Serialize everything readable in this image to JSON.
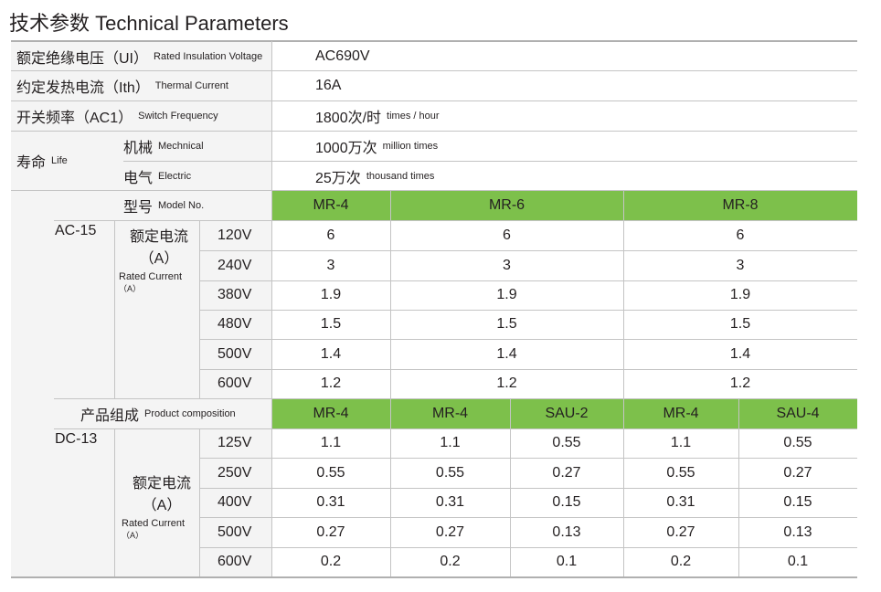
{
  "title": "技术参数 Technical Parameters",
  "params": [
    {
      "cn": "额定绝缘电压（UI）",
      "en": "Rated Insulation Voltage",
      "value": "AC690V",
      "unit": ""
    },
    {
      "cn": "约定发热电流（Ith）",
      "en": "Thermal Current",
      "value": "16A",
      "unit": ""
    },
    {
      "cn": "开关频率（AC1）",
      "en": "Switch Frequency",
      "value": "1800次/时",
      "unit": "times / hour"
    }
  ],
  "life": {
    "cn": "寿命",
    "en": "Life",
    "rows": [
      {
        "cn": "机械",
        "en": "Mechnical",
        "value": "1000万次",
        "unit": "million times"
      },
      {
        "cn": "电气",
        "en": "Electric",
        "value": "25万次",
        "unit": "thousand times"
      }
    ]
  },
  "ac": {
    "header_cn": "型号",
    "header_en": "Model No.",
    "models": [
      "MR-4",
      "MR-6",
      "MR-8"
    ],
    "category": "AC-15",
    "current_cn": "额定电流",
    "current_unit": "（A）",
    "current_en": "Rated Current",
    "current_en_unit": "（A）",
    "rows": [
      {
        "v": "120V",
        "vals": [
          "6",
          "6",
          "6"
        ]
      },
      {
        "v": "240V",
        "vals": [
          "3",
          "3",
          "3"
        ]
      },
      {
        "v": "380V",
        "vals": [
          "1.9",
          "1.9",
          "1.9"
        ]
      },
      {
        "v": "480V",
        "vals": [
          "1.5",
          "1.5",
          "1.5"
        ]
      },
      {
        "v": "500V",
        "vals": [
          "1.4",
          "1.4",
          "1.4"
        ]
      },
      {
        "v": "600V",
        "vals": [
          "1.2",
          "1.2",
          "1.2"
        ]
      }
    ]
  },
  "dc": {
    "header_cn": "产品组成",
    "header_en": "Product composition",
    "models": [
      "MR-4",
      "MR-4",
      "SAU-2",
      "MR-4",
      "SAU-4"
    ],
    "category": "DC-13",
    "current_cn": "额定电流",
    "current_unit": "（A）",
    "current_en": "Rated Current",
    "current_en_unit": "（A）",
    "rows": [
      {
        "v": "125V",
        "vals": [
          "1.1",
          "1.1",
          "0.55",
          "1.1",
          "0.55"
        ]
      },
      {
        "v": "250V",
        "vals": [
          "0.55",
          "0.55",
          "0.27",
          "0.55",
          "0.27"
        ]
      },
      {
        "v": "400V",
        "vals": [
          "0.31",
          "0.31",
          "0.15",
          "0.31",
          "0.15"
        ]
      },
      {
        "v": "500V",
        "vals": [
          "0.27",
          "0.27",
          "0.13",
          "0.27",
          "0.13"
        ]
      },
      {
        "v": "600V",
        "vals": [
          "0.2",
          "0.2",
          "0.1",
          "0.2",
          "0.1"
        ]
      }
    ]
  },
  "colors": {
    "header_green": "#7dc04b",
    "label_bg": "#f4f4f4"
  }
}
